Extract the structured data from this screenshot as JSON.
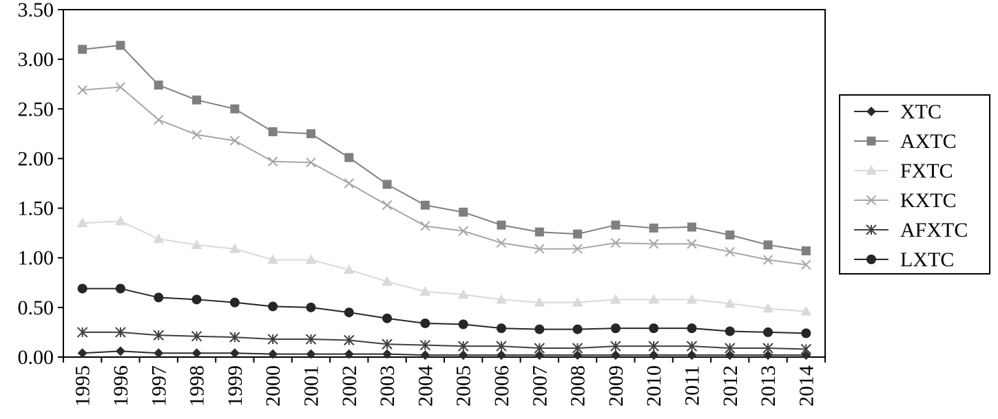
{
  "chart_data": {
    "type": "line",
    "title": "",
    "xlabel": "",
    "ylabel": "",
    "x": [
      "1995",
      "1996",
      "1997",
      "1998",
      "1999",
      "2000",
      "2001",
      "2002",
      "2003",
      "2004",
      "2005",
      "2006",
      "2007",
      "2008",
      "2009",
      "2010",
      "2011",
      "2012",
      "2013",
      "2014"
    ],
    "ylim": [
      0,
      3.5
    ],
    "yticks": [
      "0.00",
      "0.50",
      "1.00",
      "1.50",
      "2.00",
      "2.50",
      "3.00",
      "3.50"
    ],
    "grid": false,
    "legend_position": "right",
    "series": [
      {
        "name": "XTC",
        "marker": "diamond",
        "color": "#2b2b2b",
        "values": [
          0.04,
          0.06,
          0.04,
          0.04,
          0.04,
          0.03,
          0.03,
          0.03,
          0.03,
          0.02,
          0.02,
          0.02,
          0.02,
          0.02,
          0.02,
          0.02,
          0.02,
          0.02,
          0.02,
          0.02
        ]
      },
      {
        "name": "AXTC",
        "marker": "square",
        "color": "#7f7f7f",
        "values": [
          3.1,
          3.14,
          2.74,
          2.59,
          2.5,
          2.27,
          2.25,
          2.01,
          1.74,
          1.53,
          1.46,
          1.33,
          1.26,
          1.24,
          1.33,
          1.3,
          1.31,
          1.23,
          1.13,
          1.07
        ]
      },
      {
        "name": "FXTC",
        "marker": "triangle",
        "color": "#d9d9d9",
        "values": [
          1.35,
          1.37,
          1.19,
          1.13,
          1.09,
          0.98,
          0.98,
          0.88,
          0.76,
          0.66,
          0.63,
          0.58,
          0.55,
          0.55,
          0.58,
          0.58,
          0.58,
          0.54,
          0.49,
          0.46
        ]
      },
      {
        "name": "KXTC",
        "marker": "x",
        "color": "#a6a6a6",
        "values": [
          2.69,
          2.72,
          2.39,
          2.24,
          2.18,
          1.97,
          1.96,
          1.75,
          1.53,
          1.32,
          1.27,
          1.15,
          1.09,
          1.09,
          1.15,
          1.14,
          1.14,
          1.06,
          0.98,
          0.93
        ]
      },
      {
        "name": "AFXTC",
        "marker": "asterisk",
        "color": "#3f3f3f",
        "values": [
          0.25,
          0.25,
          0.22,
          0.21,
          0.2,
          0.18,
          0.18,
          0.17,
          0.13,
          0.12,
          0.11,
          0.11,
          0.09,
          0.09,
          0.11,
          0.11,
          0.11,
          0.09,
          0.09,
          0.08
        ]
      },
      {
        "name": "LXTC",
        "marker": "circle",
        "color": "#262626",
        "values": [
          0.69,
          0.69,
          0.6,
          0.58,
          0.55,
          0.51,
          0.5,
          0.45,
          0.39,
          0.34,
          0.33,
          0.29,
          0.28,
          0.28,
          0.29,
          0.29,
          0.29,
          0.26,
          0.25,
          0.24
        ]
      }
    ]
  }
}
